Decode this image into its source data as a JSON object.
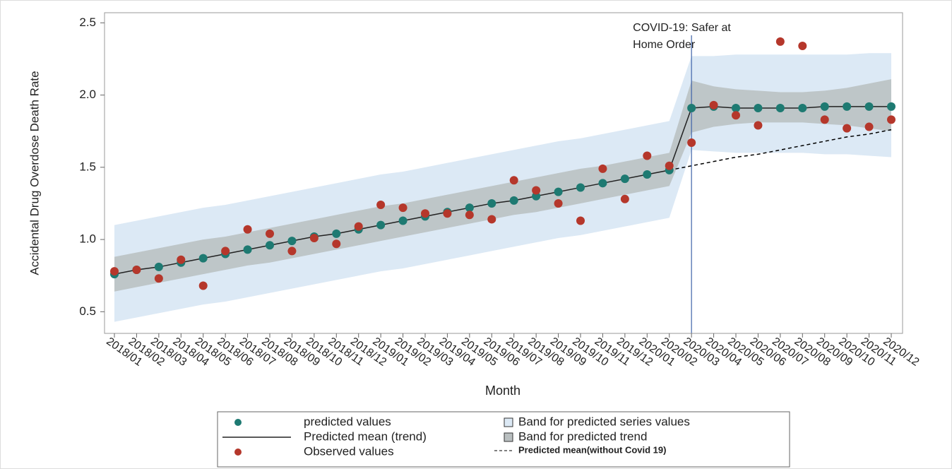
{
  "chart_data": {
    "type": "forecast",
    "xlabel": "Month",
    "ylabel": "Accidental Drug Overdose Death Rate",
    "categories": [
      "2018/01",
      "2018/02",
      "2018/03",
      "2018/04",
      "2018/05",
      "2018/06",
      "2018/07",
      "2018/08",
      "2018/09",
      "2018/10",
      "2018/11",
      "2018/12",
      "2019/01",
      "2019/02",
      "2019/03",
      "2019/04",
      "2019/05",
      "2019/06",
      "2019/07",
      "2019/08",
      "2019/09",
      "2019/10",
      "2019/11",
      "2019/12",
      "2020/01",
      "2020/02",
      "2020/03",
      "2020/04",
      "2020/05",
      "2020/06",
      "2020/07",
      "2020/08",
      "2020/09",
      "2020/10",
      "2020/11",
      "2020/12"
    ],
    "ylim": [
      0.35,
      2.57
    ],
    "yticks": [
      0.5,
      {
        "value": 1,
        "label": "1.0"
      },
      1.5,
      {
        "value": 2,
        "label": "2.0"
      },
      2.5
    ],
    "annotation": {
      "lines": [
        "COVID-19: Safer at",
        "Home Order"
      ],
      "at": "2020/03",
      "color": "#3f63a8"
    },
    "series": [
      {
        "name": "predicted values",
        "kind": "marker",
        "color": "#1e7a72",
        "values": [
          0.76,
          0.79,
          0.81,
          0.84,
          0.87,
          0.9,
          0.93,
          0.96,
          0.99,
          1.02,
          1.04,
          1.07,
          1.1,
          1.13,
          1.16,
          1.19,
          1.22,
          1.25,
          1.27,
          1.3,
          1.33,
          1.36,
          1.39,
          1.42,
          1.45,
          1.48,
          1.91,
          1.92,
          1.91,
          1.91,
          1.91,
          1.91,
          1.92,
          1.92,
          1.92,
          1.92
        ]
      },
      {
        "name": "Predicted mean (trend)",
        "kind": "line",
        "color": "#222222",
        "values": [
          0.76,
          0.79,
          0.81,
          0.84,
          0.87,
          0.9,
          0.93,
          0.96,
          0.99,
          1.02,
          1.04,
          1.07,
          1.1,
          1.13,
          1.16,
          1.19,
          1.22,
          1.25,
          1.27,
          1.3,
          1.33,
          1.36,
          1.39,
          1.42,
          1.45,
          1.48,
          1.91,
          1.92,
          1.91,
          1.91,
          1.91,
          1.91,
          1.92,
          1.92,
          1.92,
          1.92
        ]
      },
      {
        "name": "Observed values",
        "kind": "marker",
        "color": "#b5372b",
        "values": [
          0.78,
          0.79,
          0.73,
          0.86,
          0.68,
          0.92,
          1.07,
          1.04,
          0.92,
          1.01,
          0.97,
          1.09,
          1.24,
          1.22,
          1.18,
          1.18,
          1.17,
          1.14,
          1.41,
          1.34,
          1.25,
          1.13,
          1.49,
          1.28,
          1.58,
          1.51,
          1.67,
          1.93,
          1.86,
          1.79,
          2.37,
          2.34,
          1.83,
          1.77,
          1.78,
          1.83
        ]
      },
      {
        "name": "Band for predicted series values",
        "kind": "band",
        "color": "#dce9f5",
        "lower": [
          0.43,
          0.46,
          0.49,
          0.52,
          0.55,
          0.57,
          0.6,
          0.63,
          0.66,
          0.69,
          0.72,
          0.75,
          0.78,
          0.8,
          0.83,
          0.86,
          0.89,
          0.92,
          0.95,
          0.98,
          1.01,
          1.03,
          1.06,
          1.09,
          1.12,
          1.15,
          1.62,
          1.61,
          1.6,
          1.6,
          1.6,
          1.6,
          1.59,
          1.59,
          1.58,
          1.57
        ],
        "upper": [
          1.1,
          1.13,
          1.16,
          1.19,
          1.22,
          1.24,
          1.27,
          1.3,
          1.33,
          1.36,
          1.39,
          1.42,
          1.45,
          1.47,
          1.5,
          1.53,
          1.56,
          1.59,
          1.62,
          1.65,
          1.68,
          1.7,
          1.73,
          1.76,
          1.79,
          1.82,
          2.27,
          2.27,
          2.28,
          2.28,
          2.28,
          2.28,
          2.28,
          2.28,
          2.29,
          2.29
        ]
      },
      {
        "name": "Band for predicted trend",
        "kind": "band",
        "color": "#b9bfc0",
        "lower": [
          0.64,
          0.67,
          0.7,
          0.73,
          0.76,
          0.79,
          0.82,
          0.84,
          0.87,
          0.9,
          0.93,
          0.96,
          0.99,
          1.02,
          1.05,
          1.08,
          1.11,
          1.14,
          1.17,
          1.19,
          1.22,
          1.25,
          1.28,
          1.31,
          1.34,
          1.37,
          1.74,
          1.78,
          1.8,
          1.81,
          1.81,
          1.81,
          1.8,
          1.79,
          1.77,
          1.75
        ],
        "upper": [
          0.88,
          0.91,
          0.94,
          0.97,
          1.0,
          1.02,
          1.05,
          1.08,
          1.11,
          1.14,
          1.17,
          1.2,
          1.23,
          1.25,
          1.28,
          1.31,
          1.34,
          1.37,
          1.4,
          1.43,
          1.46,
          1.49,
          1.51,
          1.54,
          1.57,
          1.6,
          2.1,
          2.06,
          2.04,
          2.03,
          2.02,
          2.02,
          2.03,
          2.05,
          2.08,
          2.11
        ]
      },
      {
        "name": "Predicted mean(without Covid 19)",
        "kind": "dashed",
        "color": "#000000",
        "values": [
          null,
          null,
          null,
          null,
          null,
          null,
          null,
          null,
          null,
          null,
          null,
          null,
          null,
          null,
          null,
          null,
          null,
          null,
          null,
          null,
          null,
          null,
          null,
          null,
          null,
          1.48,
          1.51,
          1.54,
          1.57,
          1.59,
          1.62,
          1.65,
          1.68,
          1.71,
          1.73,
          1.76
        ]
      }
    ]
  }
}
